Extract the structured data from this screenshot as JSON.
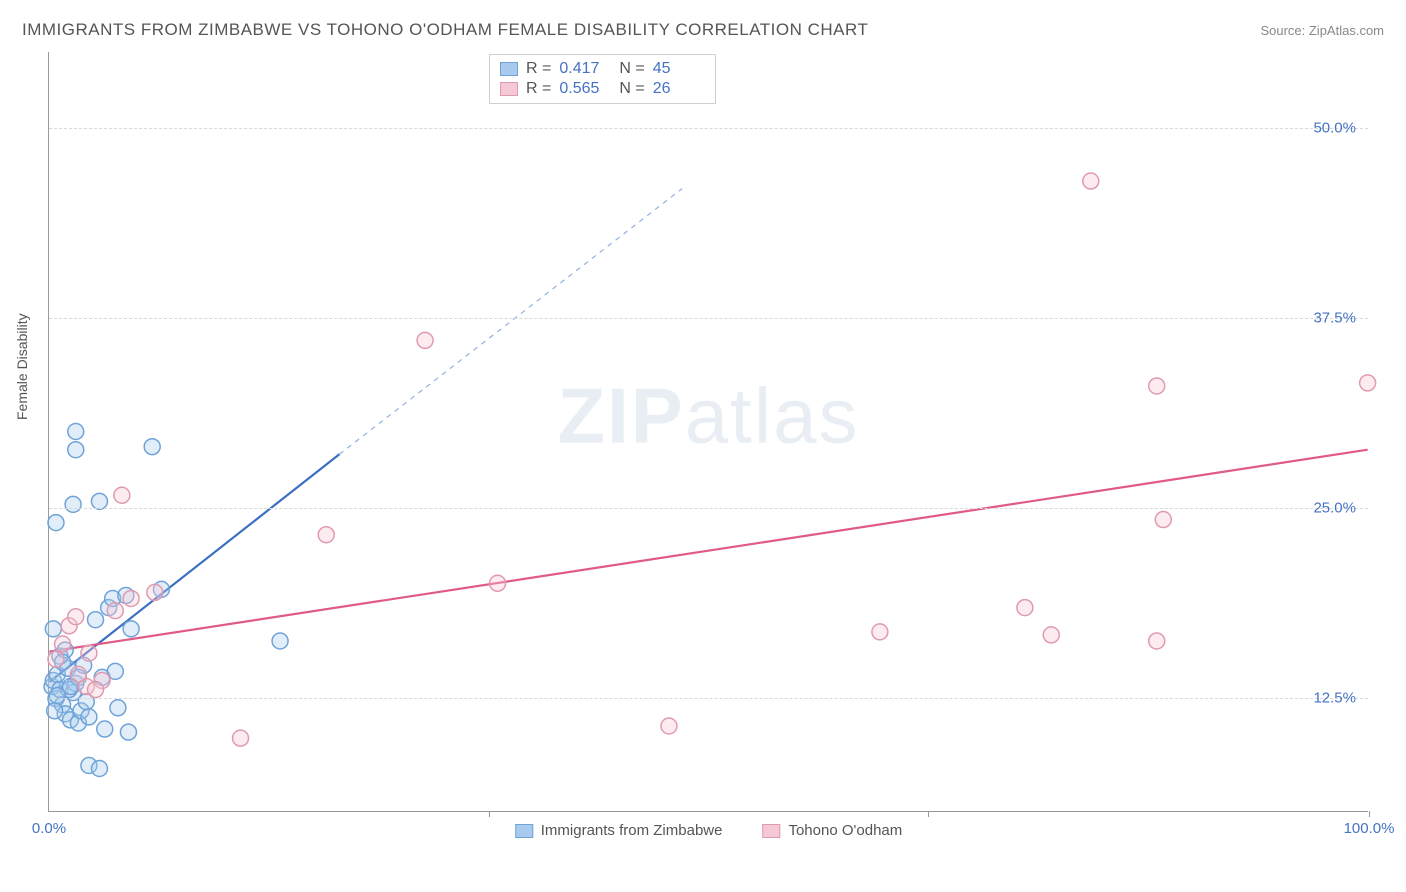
{
  "title": "IMMIGRANTS FROM ZIMBABWE VS TOHONO O'ODHAM FEMALE DISABILITY CORRELATION CHART",
  "source": "Source: ZipAtlas.com",
  "watermark": "ZIPatlas",
  "ylabel": "Female Disability",
  "chart": {
    "type": "scatter",
    "xlim": [
      0,
      100
    ],
    "ylim": [
      5,
      55
    ],
    "x_ticks": [
      0,
      33.3,
      66.6,
      100
    ],
    "x_tick_labels": [
      "0.0%",
      "",
      "",
      "100.0%"
    ],
    "y_ticks": [
      12.5,
      25,
      37.5,
      50
    ],
    "y_tick_labels": [
      "12.5%",
      "25.0%",
      "37.5%",
      "50.0%"
    ],
    "background_color": "#ffffff",
    "grid_color": "#d8d8d8",
    "axis_color": "#999999",
    "marker_radius": 8,
    "marker_stroke_width": 1.5,
    "marker_fill_opacity": 0.35
  },
  "series": [
    {
      "name": "Immigrants from Zimbabwe",
      "color_stroke": "#6fa3d8",
      "color_fill": "#a8cbed",
      "R": "0.417",
      "N": "45",
      "trend": {
        "x1": 0,
        "y1": 13.5,
        "x2": 22,
        "y2": 28.5,
        "x2_dash": 48,
        "y2_dash": 46,
        "color": "#3b6fc2",
        "width": 2.2
      },
      "points": [
        [
          0.2,
          13.2
        ],
        [
          0.3,
          13.6
        ],
        [
          0.5,
          12.4
        ],
        [
          0.6,
          14.0
        ],
        [
          0.8,
          13.0
        ],
        [
          1.0,
          12.0
        ],
        [
          1.2,
          11.4
        ],
        [
          1.4,
          14.4
        ],
        [
          1.6,
          11.0
        ],
        [
          1.8,
          12.8
        ],
        [
          2.0,
          13.4
        ],
        [
          2.2,
          10.8
        ],
        [
          2.4,
          11.6
        ],
        [
          2.6,
          14.6
        ],
        [
          2.8,
          12.2
        ],
        [
          3.0,
          11.2
        ],
        [
          3.5,
          17.6
        ],
        [
          4.0,
          13.8
        ],
        [
          4.2,
          10.4
        ],
        [
          4.5,
          18.4
        ],
        [
          5.0,
          14.2
        ],
        [
          5.2,
          11.8
        ],
        [
          6.0,
          10.2
        ],
        [
          6.2,
          17.0
        ],
        [
          0.5,
          24.0
        ],
        [
          1.8,
          25.2
        ],
        [
          3.8,
          25.4
        ],
        [
          4.8,
          19.0
        ],
        [
          5.8,
          19.2
        ],
        [
          8.5,
          19.6
        ],
        [
          2.0,
          30.0
        ],
        [
          7.8,
          29.0
        ],
        [
          3.0,
          8.0
        ],
        [
          3.8,
          7.8
        ],
        [
          0.8,
          15.2
        ],
        [
          1.2,
          15.6
        ],
        [
          0.3,
          17.0
        ],
        [
          17.5,
          16.2
        ],
        [
          1.5,
          13.0
        ],
        [
          0.4,
          11.6
        ],
        [
          2.2,
          13.8
        ],
        [
          0.6,
          12.6
        ],
        [
          1.0,
          14.8
        ],
        [
          1.6,
          13.2
        ],
        [
          2.0,
          28.8
        ]
      ]
    },
    {
      "name": "Tohono O'odham",
      "color_stroke": "#e09ab0",
      "color_fill": "#f5c8d5",
      "R": "0.565",
      "N": "26",
      "trend": {
        "x1": 0,
        "y1": 15.5,
        "x2": 100,
        "y2": 28.8,
        "color": "#e05a87",
        "width": 2.2
      },
      "points": [
        [
          0.5,
          15.0
        ],
        [
          1.0,
          16.0
        ],
        [
          1.5,
          17.2
        ],
        [
          2.0,
          17.8
        ],
        [
          2.8,
          13.2
        ],
        [
          3.0,
          15.4
        ],
        [
          4.0,
          13.6
        ],
        [
          5.0,
          18.2
        ],
        [
          6.2,
          19.0
        ],
        [
          8.0,
          19.4
        ],
        [
          5.5,
          25.8
        ],
        [
          21.0,
          23.2
        ],
        [
          14.5,
          9.8
        ],
        [
          28.5,
          36.0
        ],
        [
          34.0,
          20.0
        ],
        [
          47.0,
          10.6
        ],
        [
          63.0,
          16.8
        ],
        [
          74.0,
          18.4
        ],
        [
          76.0,
          16.6
        ],
        [
          84.0,
          16.2
        ],
        [
          84.5,
          24.2
        ],
        [
          84.0,
          33.0
        ],
        [
          79.0,
          46.5
        ],
        [
          100.0,
          33.2
        ],
        [
          2.2,
          14.0
        ],
        [
          3.5,
          13.0
        ]
      ]
    }
  ],
  "legend_labels": {
    "R": "R =",
    "N": "N ="
  }
}
